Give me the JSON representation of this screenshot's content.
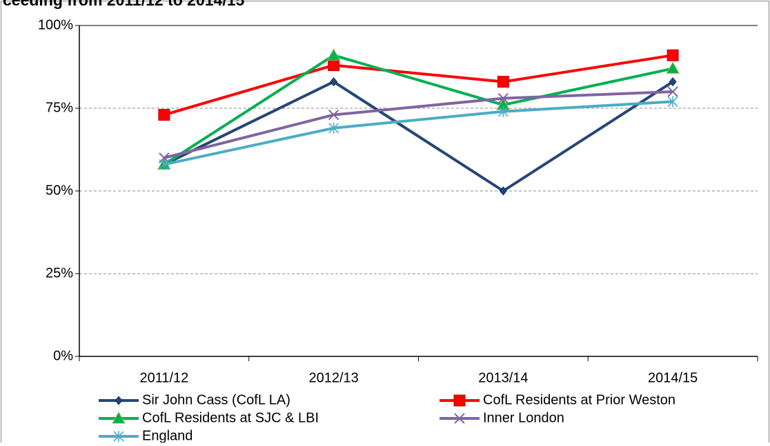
{
  "chart_data": {
    "type": "line",
    "title": "ceeding from 2011/12 to 2014/15",
    "categories": [
      "2011/12",
      "2012/13",
      "2013/14",
      "2014/15"
    ],
    "series": [
      {
        "name": "Sir John Cass (CofL LA)",
        "color": "#254676",
        "marker": "diamond",
        "values": [
          58,
          83,
          50,
          83
        ]
      },
      {
        "name": "CofL Residents at Prior Weston",
        "color": "#FF0000",
        "marker": "square",
        "values": [
          73,
          88,
          83,
          91
        ]
      },
      {
        "name": "CofL Residents at SJC & LBI",
        "color": "#00B050",
        "marker": "triangle",
        "values": [
          58,
          91,
          76,
          87
        ]
      },
      {
        "name": "Inner London",
        "color": "#8064A2",
        "marker": "x",
        "values": [
          60,
          73,
          78,
          80
        ]
      },
      {
        "name": "England",
        "color": "#4BACC6",
        "marker": "star",
        "values": [
          58,
          69,
          74,
          77
        ]
      }
    ],
    "ylim": [
      0,
      100
    ],
    "yticks": [
      {
        "value": 0,
        "label": "0%"
      },
      {
        "value": 25,
        "label": "25%"
      },
      {
        "value": 50,
        "label": "50%"
      },
      {
        "value": 75,
        "label": "75%"
      },
      {
        "value": 100,
        "label": "100%"
      }
    ],
    "grid": true,
    "legend": "bottom"
  }
}
